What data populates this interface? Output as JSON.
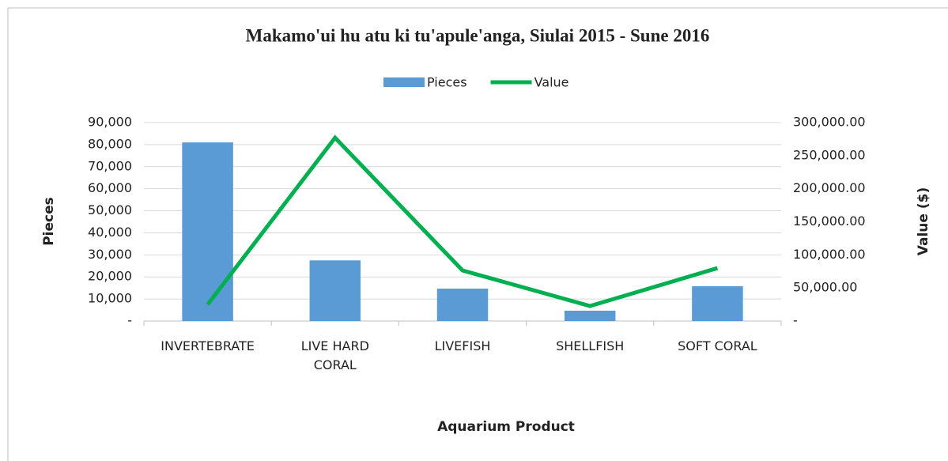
{
  "chart_data": {
    "type": "bar_line",
    "title": "Makamo'ui hu atu ki tu'apule'anga, Siulai 2015 - Sune 2016",
    "x_label": "Aquarium Product",
    "y_label": "Pieces",
    "y2_label": "Value ($)",
    "categories": [
      "INVERTEBRATE",
      "LIVE HARD CORAL",
      "LIVEFISH",
      "SHELLFISH",
      "SOFT CORAL"
    ],
    "series": [
      {
        "name": "Pieces",
        "type": "bar",
        "color": "#5b9bd5",
        "values": [
          81000,
          27500,
          14700,
          4700,
          15800
        ]
      },
      {
        "name": "Value",
        "type": "line",
        "axis": "y2",
        "color": "#00b050",
        "values": [
          25000,
          277000,
          76500,
          22700,
          80000
        ]
      }
    ],
    "ylim": [
      0,
      90000
    ],
    "yticks": [
      {
        "value": 0,
        "label": "-"
      },
      {
        "value": 10000,
        "label": "10,000"
      },
      {
        "value": 20000,
        "label": "20,000"
      },
      {
        "value": 30000,
        "label": "30,000"
      },
      {
        "value": 40000,
        "label": "40,000"
      },
      {
        "value": 50000,
        "label": "50,000"
      },
      {
        "value": 60000,
        "label": "60,000"
      },
      {
        "value": 70000,
        "label": "70,000"
      },
      {
        "value": 80000,
        "label": "80,000"
      },
      {
        "value": 90000,
        "label": "90,000"
      }
    ],
    "y2lim": [
      0,
      300000
    ],
    "y2ticks": [
      {
        "value": 0,
        "label": "-"
      },
      {
        "value": 50000,
        "label": "50,000.00"
      },
      {
        "value": 100000,
        "label": "100,000.00"
      },
      {
        "value": 150000,
        "label": "150,000.00"
      },
      {
        "value": 200000,
        "label": "200,000.00"
      },
      {
        "value": 250000,
        "label": "250,000.00"
      },
      {
        "value": 300000,
        "label": "300,000.00"
      }
    ],
    "grid": true,
    "legend": "top"
  }
}
